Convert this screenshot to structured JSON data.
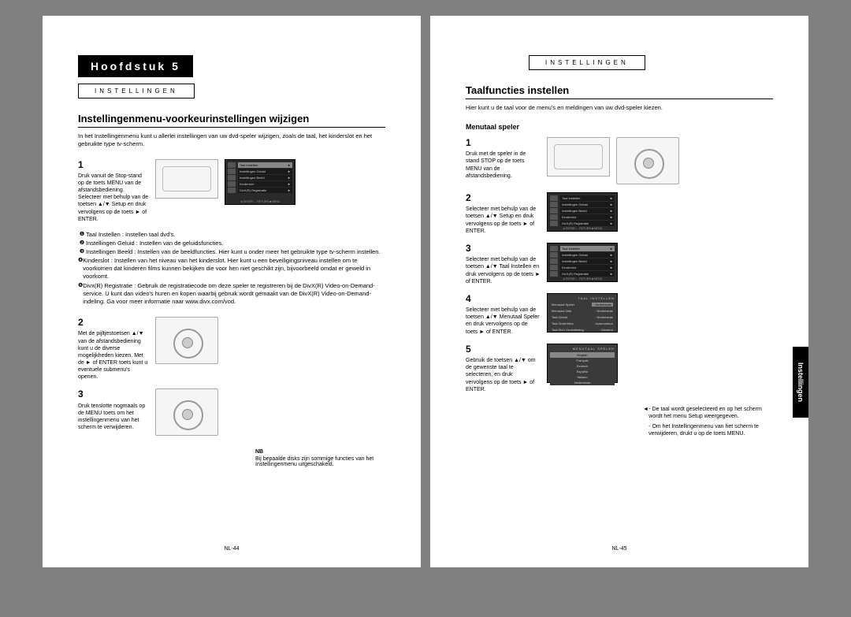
{
  "left": {
    "chapter": "Hoofdstuk 5",
    "tab_label": "INSTELLINGEN",
    "title": "Instellingenmenu-voorkeurinstellingen wijzigen",
    "intro": "In het Instellingenmenu kunt u allerlei instellingen van uw dvd-speler wijzigen, zoals de taal, het kinderslot en het gebruikte type tv-scherm.",
    "step1": {
      "num": "1",
      "text_a": "Druk vanuit de Stop-stand op de toets MENU van de afstandsbediening.",
      "text_b": "Selecteer met behulp van de toetsen ▲/▼ Setup en druk vervolgens op de toets ► of ENTER."
    },
    "menu_items": [
      "Taal Instellen",
      "Instellingen Geluid",
      "Instellingen Beeld",
      "Kinderslot :",
      "DivX(R) Registratie"
    ],
    "menu_footer": "◄ ENTER   ← RETURN   ■ MENU",
    "defs": [
      "Taal Instellen : Instellen taal dvd's.",
      "Instellingen Geluid : Instellen van de geluidsfuncties.",
      "Instellingen Beeld : Instellen van de beeldfuncties. Hier kunt u onder meer het gebruikte type tv-scherm instellen.",
      "Kinderslot : Instellen van het niveau van het kinderslot. Hier kunt u een beveiligingsniveau instellen om te voorkomen dat kinderen films kunnen bekijken die voor hen niet geschikt zijn, bijvoorbeeld omdat er geweld in voorkomt.",
      "Divx(R) Registratie : Gebruik de registratiecode om deze speler te registreren bij de DivX(R) Video-on-Demand-service. U kunt dan video's huren en kopen waarbij gebruik wordt gemaakt van de DivX(R) Video-on-Demand-indeling. Ga voor meer informatie naar www.divx.com/vod."
    ],
    "step2": {
      "num": "2",
      "text": "Met de pijltjestoetsen ▲/▼ van de afstandsbediening kunt u de diverse mogelijkheden kiezen. Met de ► of ENTER toets kunt u eventuele submenu's openen."
    },
    "step3": {
      "num": "3",
      "text": "Druk tenslotte nogmaals op de MENU toets om het instellingenmenu van het scherm te verwijderen."
    },
    "nb_title": "NB",
    "nb_text": "Bij bepaalde disks zijn sommige functies van het Instellingenmenu uitgeschakeld.",
    "page_num": "NL-44"
  },
  "right": {
    "tab_label": "INSTELLINGEN",
    "title": "Taalfuncties instellen",
    "intro": "Hier kunt u de taal voor de menu's en meldingen van uw dvd-speler kiezen.",
    "subheading": "Menutaal speler",
    "step1": {
      "num": "1",
      "text": "Druk met de speler in de stand STOP op de toets MENU van de afstandsbediening."
    },
    "step2": {
      "num": "2",
      "text": "Selecteer met behulp van de toetsen ▲/▼ Setup en druk vervolgens op de toets ► of ENTER."
    },
    "step3": {
      "num": "3",
      "text": "Selecteer met behulp van de toetsen ▲/▼ Taal Instellen en druk vervolgens op de toets ► of ENTER."
    },
    "step4": {
      "num": "4",
      "text": "Selecteer met behulp van de toetsen ▲/▼ Menutaal Speler en druk vervolgens op de toets ► of ENTER."
    },
    "step5": {
      "num": "5",
      "text": "Gebruik de toetsen ▲/▼ om de gewenste taal te selecteren, en druk vervolgens op de toets ► of ENTER."
    },
    "menu4_title": "TAAL INSTELLEN",
    "menu4_rows": [
      [
        "Menutaal Speler",
        ": Nederlands"
      ],
      [
        "Menutaal Disk",
        ": Nederlands"
      ],
      [
        "Taal Geluid",
        ": Nederlands"
      ],
      [
        "Taal Ondertitels",
        ": Automatisch"
      ],
      [
        "Taal DivX Ondertiteling",
        ": Western"
      ]
    ],
    "menu5_title": "MENUTAAL SPELER",
    "menu5_langs": [
      "English",
      "Français",
      "Deutsch",
      "Español",
      "Italiano",
      "Nederlands"
    ],
    "note1": "- De taal wordt geselecteerd en op het scherm wordt het menu Setup weergegeven.",
    "note2": "- Om het Instellingenmenu van het scherm te verwijderen, drukt u op de toets MENU.",
    "side_tab": "Instellingen",
    "page_num": "NL-45"
  },
  "colors": {
    "page_bg": "#ffffff",
    "spread_bg": "#808080",
    "black": "#000000",
    "menu_bg": "#2a2a2a",
    "menu_hl": "#888888"
  }
}
